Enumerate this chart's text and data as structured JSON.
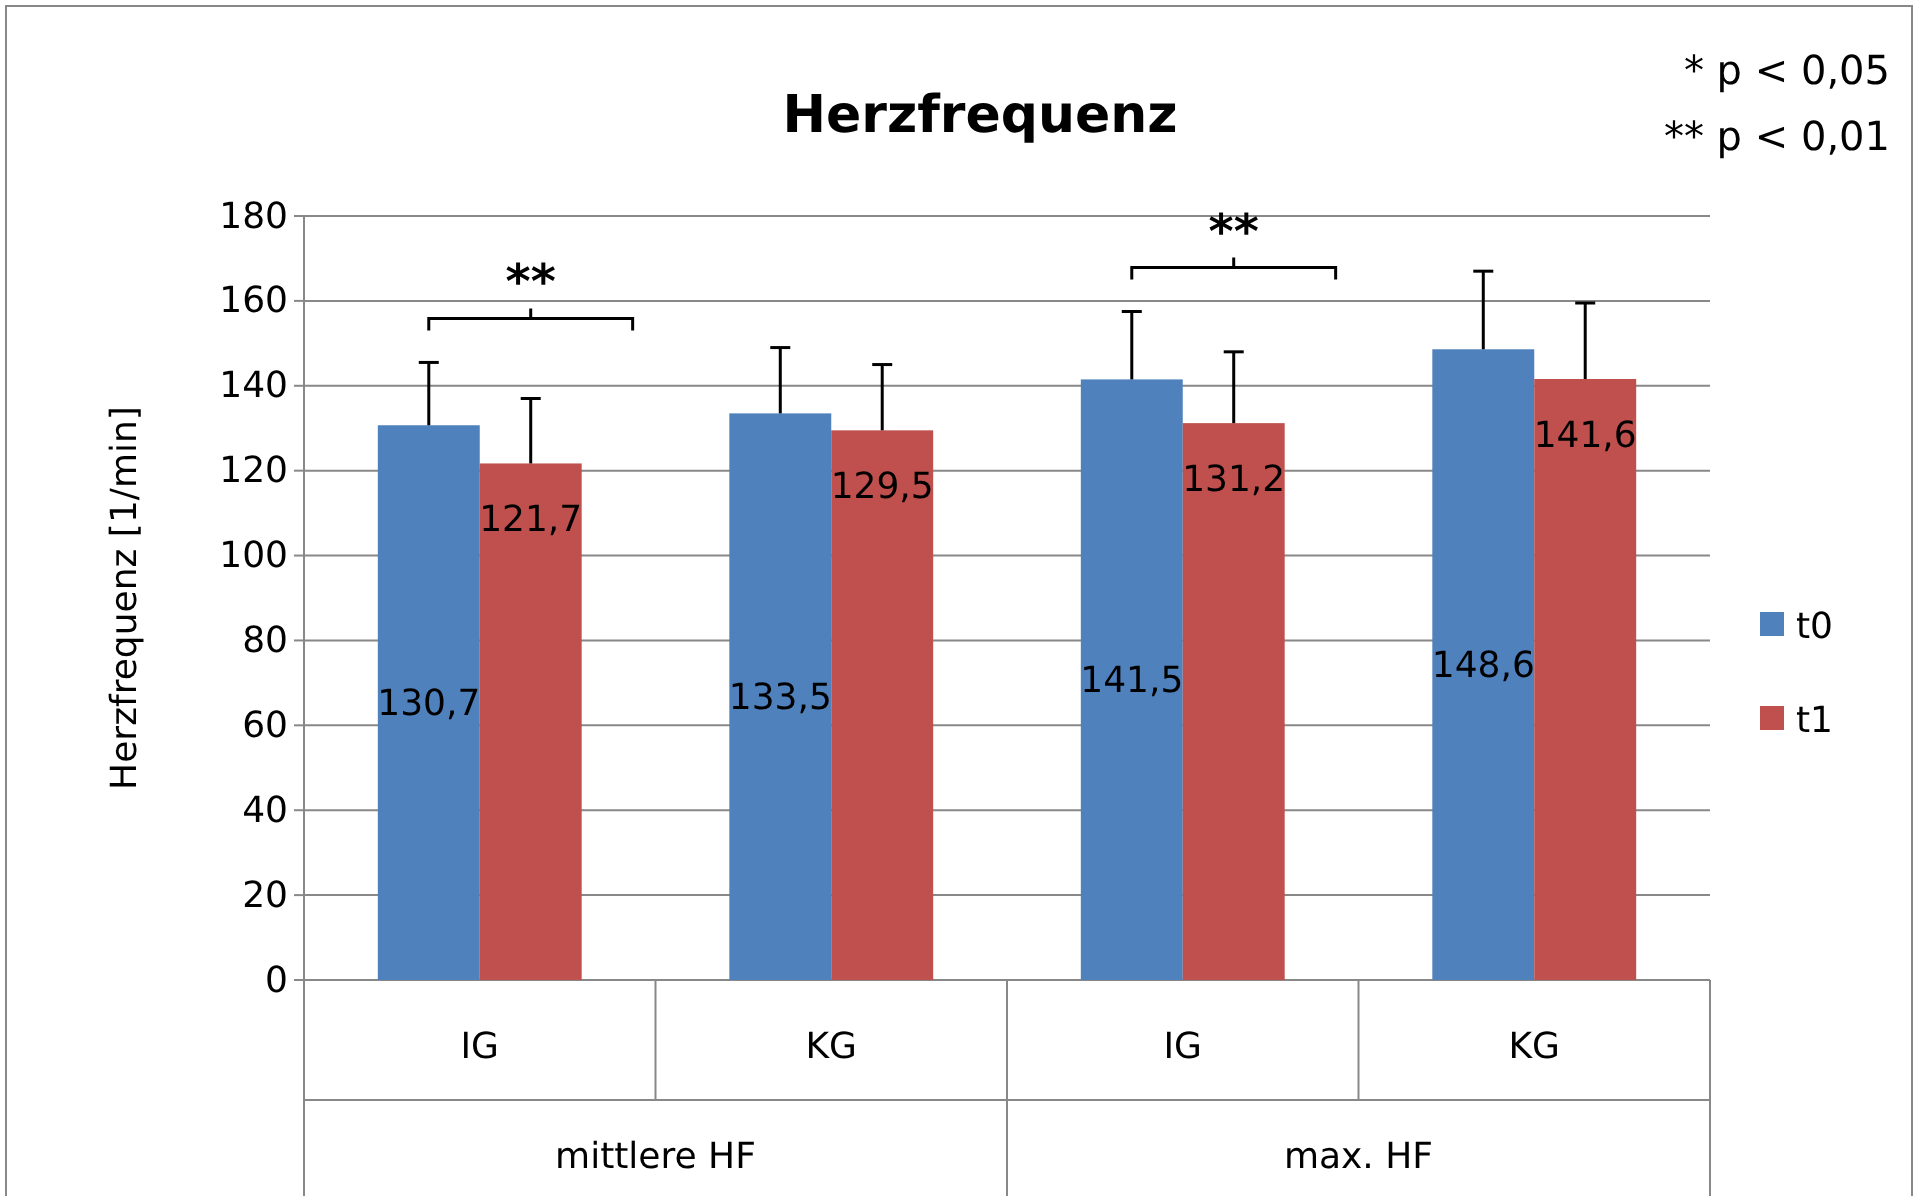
{
  "chart_data": {
    "type": "bar",
    "title": "Herzfrequenz",
    "ylabel": "Herzfrequenz [1/min]",
    "categories": [
      "IG",
      "KG",
      "IG",
      "KG"
    ],
    "series": [
      {
        "name": "t0",
        "color": "#4f81bd",
        "values": [
          130.7,
          133.5,
          141.5,
          148.6
        ],
        "value_labels": [
          "130,7",
          "133,5",
          "141,5",
          "148,6"
        ],
        "errors": [
          [
            130.7,
            145.5
          ],
          [
            133.5,
            149
          ],
          [
            141.5,
            157.5
          ],
          [
            148.6,
            167
          ]
        ]
      },
      {
        "name": "t1",
        "color": "#c0504d",
        "values": [
          121.7,
          129.5,
          131.2,
          141.6
        ],
        "value_labels": [
          "121,7",
          "129,5",
          "131,2",
          "141,6"
        ],
        "errors": [
          [
            121.7,
            137
          ],
          [
            129.5,
            145
          ],
          [
            131.2,
            148
          ],
          [
            141.6,
            159.5
          ]
        ]
      }
    ],
    "annotations": [
      "mittlere HF",
      "max. HF",
      "**",
      "**",
      "* p < 0,05",
      "** p < 0,01"
    ],
    "ylim": [
      0,
      180
    ],
    "yticks": [
      0,
      20,
      40,
      60,
      80,
      100,
      120,
      140,
      160,
      180
    ],
    "grid": "y",
    "legend": "right"
  }
}
